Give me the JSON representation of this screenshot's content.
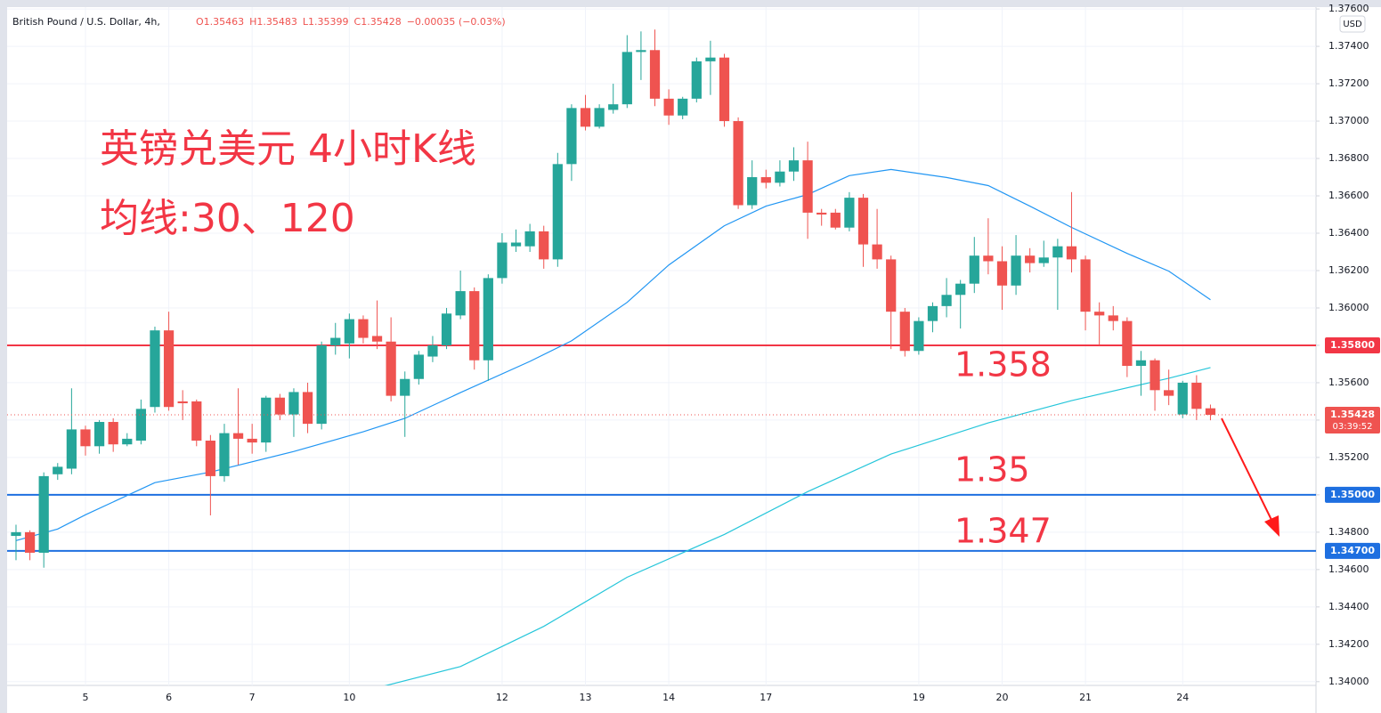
{
  "chart_data": {
    "type": "candlestick",
    "title": "British Pound / U.S. Dollar, 4h,",
    "ohlc_legend": [
      "O1.35463",
      "H1.35483",
      "L1.35399",
      "C1.35428",
      "−0.00035 (−0.03%)"
    ],
    "currency": "USD",
    "annotations": [
      "英镑兑美元 4小时K线",
      "均线:30、120",
      "1.358",
      "1.35",
      "1.347"
    ],
    "annotation_color": "#f23645",
    "up_color": "#26a69a",
    "down_color": "#ef5350",
    "grid": true,
    "categories": [
      null,
      null,
      null,
      null,
      null,
      "5",
      null,
      null,
      null,
      null,
      null,
      "6",
      null,
      null,
      null,
      null,
      null,
      "7",
      null,
      null,
      null,
      null,
      null,
      null,
      "10",
      null,
      null,
      null,
      null,
      null,
      null,
      null,
      null,
      null,
      null,
      "12",
      null,
      null,
      null,
      null,
      null,
      "13",
      null,
      null,
      null,
      null,
      null,
      "14",
      null,
      null,
      null,
      null,
      null,
      null,
      "17",
      null,
      null,
      null,
      null,
      null,
      null,
      null,
      null,
      null,
      null,
      "19",
      null,
      null,
      null,
      null,
      null,
      "20",
      null,
      null,
      null,
      null,
      null,
      "21",
      null,
      null,
      null,
      null,
      null,
      null,
      "24",
      null,
      null
    ],
    "open": [
      1.3478,
      1.348,
      1.3469,
      1.3511,
      1.3514,
      1.3535,
      1.3526,
      1.3539,
      1.3527,
      1.3529,
      1.3547,
      1.3588,
      1.355,
      1.355,
      1.3529,
      1.351,
      1.3533,
      1.353,
      1.3528,
      1.3552,
      1.3543,
      1.3555,
      1.3538,
      1.358,
      1.3581,
      1.3594,
      1.3585,
      1.3582,
      1.3553,
      1.3562,
      1.3574,
      1.358,
      1.3596,
      1.3609,
      1.3572,
      1.3616,
      1.3633,
      1.3633,
      1.3641,
      1.3626,
      1.3677,
      1.3707,
      1.3697,
      1.3706,
      1.3709,
      1.3737,
      1.3738,
      1.3712,
      1.3703,
      1.3712,
      1.3732,
      1.3734,
      1.37,
      1.3655,
      1.367,
      1.3667,
      1.3673,
      1.3679,
      1.3651,
      1.3651,
      1.3643,
      1.3659,
      1.3634,
      1.3626,
      1.3598,
      1.3577,
      1.3593,
      1.3601,
      1.3607,
      1.3613,
      1.3628,
      1.3625,
      1.3612,
      1.3628,
      1.3624,
      1.3627,
      1.3633,
      1.3626,
      1.3598,
      1.3596,
      1.3593,
      1.3569,
      1.3572,
      1.3556,
      1.3543,
      1.356,
      1.35463
    ],
    "high": [
      1.3484,
      1.3481,
      1.3512,
      1.3517,
      1.3557,
      1.3537,
      1.354,
      1.3541,
      1.3533,
      1.3551,
      1.359,
      1.3598,
      1.3556,
      1.3551,
      1.3532,
      1.3538,
      1.3557,
      1.3538,
      1.3553,
      1.3554,
      1.3557,
      1.356,
      1.3582,
      1.3592,
      1.3597,
      1.3596,
      1.3604,
      1.3595,
      1.3566,
      1.3577,
      1.3585,
      1.36,
      1.362,
      1.3611,
      1.3618,
      1.364,
      1.3642,
      1.3645,
      1.3644,
      1.3683,
      1.3709,
      1.3714,
      1.3709,
      1.372,
      1.3746,
      1.3748,
      1.3749,
      1.3717,
      1.3713,
      1.3734,
      1.3743,
      1.3736,
      1.3702,
      1.3679,
      1.3674,
      1.3679,
      1.3686,
      1.3689,
      1.3653,
      1.3653,
      1.3662,
      1.3661,
      1.3653,
      1.3628,
      1.36,
      1.3595,
      1.3603,
      1.3616,
      1.3615,
      1.3638,
      1.3648,
      1.3633,
      1.3639,
      1.3632,
      1.3636,
      1.3637,
      1.3662,
      1.3628,
      1.3603,
      1.3601,
      1.3595,
      1.3577,
      1.3573,
      1.3567,
      1.3561,
      1.3564,
      1.35483
    ],
    "low": [
      1.3465,
      1.3465,
      1.3461,
      1.3508,
      1.3511,
      1.3521,
      1.3522,
      1.3523,
      1.3526,
      1.3527,
      1.3544,
      1.3545,
      1.354,
      1.3526,
      1.3489,
      1.3507,
      1.3516,
      1.3522,
      1.3523,
      1.354,
      1.3531,
      1.3533,
      1.3535,
      1.3575,
      1.3573,
      1.3581,
      1.3578,
      1.355,
      1.3531,
      1.3559,
      1.3571,
      1.3578,
      1.3594,
      1.3567,
      1.3561,
      1.3613,
      1.363,
      1.363,
      1.3621,
      1.3622,
      1.3668,
      1.3695,
      1.3696,
      1.3704,
      1.3707,
      1.3722,
      1.3708,
      1.3698,
      1.3701,
      1.371,
      1.3714,
      1.3697,
      1.3653,
      1.3653,
      1.3664,
      1.3665,
      1.3668,
      1.3637,
      1.3644,
      1.3642,
      1.3641,
      1.3622,
      1.3621,
      1.3578,
      1.3574,
      1.3575,
      1.3587,
      1.3595,
      1.3589,
      1.3608,
      1.3618,
      1.3599,
      1.3607,
      1.3619,
      1.3622,
      1.3599,
      1.3619,
      1.3588,
      1.358,
      1.3588,
      1.3563,
      1.3553,
      1.3545,
      1.3548,
      1.3541,
      1.354,
      1.35399
    ],
    "close": [
      1.348,
      1.3469,
      1.351,
      1.3515,
      1.3535,
      1.3526,
      1.3539,
      1.3527,
      1.353,
      1.3546,
      1.3588,
      1.3547,
      1.3549,
      1.3529,
      1.351,
      1.3533,
      1.353,
      1.3528,
      1.3552,
      1.3543,
      1.3555,
      1.3538,
      1.358,
      1.3584,
      1.3594,
      1.3584,
      1.3582,
      1.3553,
      1.3562,
      1.3575,
      1.358,
      1.3597,
      1.3609,
      1.3572,
      1.3616,
      1.3635,
      1.3635,
      1.3641,
      1.3626,
      1.3677,
      1.3707,
      1.3697,
      1.3707,
      1.3709,
      1.3737,
      1.3738,
      1.3712,
      1.3703,
      1.3712,
      1.3732,
      1.3734,
      1.37,
      1.3655,
      1.367,
      1.3667,
      1.3673,
      1.3679,
      1.3651,
      1.365,
      1.3643,
      1.3659,
      1.3634,
      1.3626,
      1.3598,
      1.3577,
      1.3593,
      1.3601,
      1.3607,
      1.3613,
      1.3628,
      1.3625,
      1.3612,
      1.3628,
      1.3624,
      1.3627,
      1.3633,
      1.3626,
      1.3598,
      1.3596,
      1.3593,
      1.3569,
      1.3572,
      1.3556,
      1.3553,
      1.356,
      1.3546,
      1.35428
    ],
    "ma_lines": [
      {
        "color": "#2196f3",
        "x": [
          0,
          3,
          5,
          10,
          14,
          20,
          25,
          28,
          32,
          37,
          40,
          44,
          47,
          51,
          54,
          57,
          60,
          63,
          67,
          70,
          73,
          76,
          80,
          83,
          86
        ],
        "values": [
          1.34755,
          1.34817,
          1.34893,
          1.35065,
          1.35122,
          1.35232,
          1.35337,
          1.35409,
          1.35547,
          1.35714,
          1.35824,
          1.3603,
          1.3623,
          1.3644,
          1.36545,
          1.36607,
          1.36708,
          1.36741,
          1.36698,
          1.36655,
          1.36545,
          1.36431,
          1.36292,
          1.36197,
          1.36044
        ]
      },
      {
        "color": "#26c6da",
        "x": [
          26,
          32,
          38,
          44,
          51,
          57,
          63,
          70,
          76,
          83,
          86
        ],
        "values": [
          1.33967,
          1.34081,
          1.34296,
          1.34559,
          1.34788,
          1.35017,
          1.35218,
          1.35385,
          1.35504,
          1.35624,
          1.35681
        ]
      }
    ],
    "levels": [
      {
        "value": 1.358,
        "label": "1.35800",
        "color": "#f23645"
      },
      {
        "value": 1.35,
        "label": "1.35000",
        "color": "#1e6fe0"
      },
      {
        "value": 1.347,
        "label": "1.34700",
        "color": "#1e6fe0"
      }
    ],
    "last_price": {
      "value": 1.35428,
      "label": "1.35428",
      "countdown": "03:39:52",
      "color": "#ef5350"
    },
    "xlim": [
      -0.64,
      93.6
    ],
    "ylim": [
      1.3398,
      1.3761
    ],
    "yticks": [
      {
        "value": 1.34,
        "label": "1.34000"
      },
      {
        "value": 1.342,
        "label": "1.34200"
      },
      {
        "value": 1.344,
        "label": "1.34400"
      },
      {
        "value": 1.346,
        "label": "1.34600"
      },
      {
        "value": 1.348,
        "label": "1.34800"
      },
      {
        "value": 1.35,
        "label": "1.35000"
      },
      {
        "value": 1.352,
        "label": "1.35200"
      },
      {
        "value": 1.354,
        "label": "1.35400"
      },
      {
        "value": 1.356,
        "label": "1.35600"
      },
      {
        "value": 1.358,
        "label": "1.35800"
      },
      {
        "value": 1.36,
        "label": "1.36000"
      },
      {
        "value": 1.362,
        "label": "1.36200"
      },
      {
        "value": 1.364,
        "label": "1.36400"
      },
      {
        "value": 1.366,
        "label": "1.36600"
      },
      {
        "value": 1.368,
        "label": "1.36800"
      },
      {
        "value": 1.37,
        "label": "1.37000"
      },
      {
        "value": 1.372,
        "label": "1.37200"
      },
      {
        "value": 1.374,
        "label": "1.37400"
      },
      {
        "value": 1.376,
        "label": "1.37600"
      }
    ]
  }
}
